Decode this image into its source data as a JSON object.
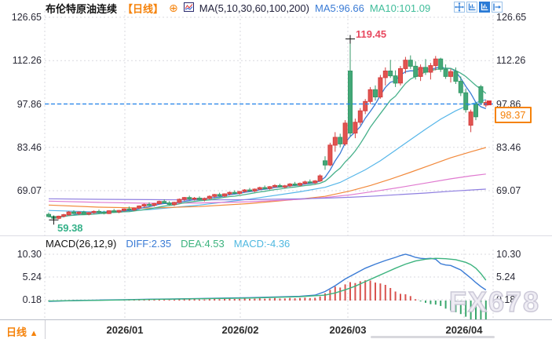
{
  "header": {
    "title": "布伦特原油连续",
    "period_tag": "【日线】",
    "plus_icon": "⊕",
    "ma_settings": "MA(5,10,30,60,100,200)",
    "ma5": "MA5:96.66",
    "ma10": "MA10:101.09"
  },
  "macd_header": {
    "label": "MACD(26,12,9)",
    "diff": "DIFF:2.35",
    "dea": "DEA:4.53",
    "macd": "MACD:-4.36"
  },
  "annotations": {
    "high": "119.45",
    "low": "59.38",
    "last_price": "98.37"
  },
  "bottom_bar": {
    "period": "日线",
    "arrow": "▲",
    "dates": [
      "2026/01",
      "2026/02",
      "2026/03",
      "2026/04"
    ]
  },
  "watermark": "FX678",
  "colors": {
    "up": "#e15450",
    "up_stroke": "#d64040",
    "down": "#43a878",
    "down_stroke": "#379a69",
    "ma5": "#3a7bd5",
    "ma10": "#46b08a",
    "ma30": "#56b6e9",
    "ma60": "#f2893b",
    "ma100": "#e07ad0",
    "ma200": "#8f7fe0",
    "diff": "#3a7bd5",
    "dea": "#3cb37e",
    "hist_pos": "#d9534f",
    "hist_neg": "#3aa76d",
    "dashed_line": "#1e7fe8",
    "accent_orange": "#f5820a",
    "grid": "#d9d9df",
    "marker": "#e03434",
    "cross": "#111111"
  },
  "chart_data": {
    "type": "candlestick",
    "instrument": "布伦特原油连续",
    "interval": "日线",
    "price_axis_ticks": [
      126.65,
      112.26,
      97.86,
      83.46,
      69.07
    ],
    "dashed_level": 97.86,
    "last_price": 98.37,
    "high_annotation": {
      "index": 60,
      "price": 119.45
    },
    "low_annotation": {
      "index": 1,
      "price": 59.38
    },
    "candles": [
      [
        61.2,
        61.8,
        60.2,
        60.5
      ],
      [
        60.5,
        60.9,
        59.38,
        59.9
      ],
      [
        59.9,
        60.8,
        59.6,
        60.6
      ],
      [
        60.6,
        61.4,
        60.2,
        61.1
      ],
      [
        61.1,
        62.3,
        60.8,
        62.0
      ],
      [
        62.0,
        62.6,
        61.2,
        61.5
      ],
      [
        61.5,
        62.2,
        61.0,
        62.0
      ],
      [
        62.0,
        62.4,
        61.1,
        61.3
      ],
      [
        61.3,
        62.0,
        60.9,
        61.8
      ],
      [
        61.8,
        62.5,
        61.4,
        62.2
      ],
      [
        62.2,
        62.8,
        61.6,
        61.9
      ],
      [
        61.9,
        62.4,
        61.2,
        61.5
      ],
      [
        61.5,
        62.6,
        61.3,
        62.4
      ],
      [
        62.4,
        63.0,
        61.8,
        62.0
      ],
      [
        62.0,
        62.7,
        61.6,
        62.5
      ],
      [
        62.5,
        63.2,
        62.1,
        63.0
      ],
      [
        63.0,
        63.8,
        62.4,
        62.7
      ],
      [
        62.7,
        63.5,
        62.3,
        63.3
      ],
      [
        63.3,
        64.2,
        63.0,
        64.0
      ],
      [
        64.0,
        64.8,
        63.5,
        64.5
      ],
      [
        64.5,
        65.2,
        63.9,
        64.2
      ],
      [
        64.2,
        65.0,
        63.8,
        64.8
      ],
      [
        64.8,
        65.8,
        64.5,
        65.5
      ],
      [
        65.5,
        66.2,
        64.8,
        65.0
      ],
      [
        65.0,
        65.6,
        64.2,
        64.5
      ],
      [
        64.5,
        65.4,
        64.0,
        65.2
      ],
      [
        65.2,
        66.5,
        65.0,
        66.2
      ],
      [
        66.2,
        67.0,
        65.6,
        66.8
      ],
      [
        66.8,
        67.4,
        66.0,
        66.3
      ],
      [
        66.3,
        67.0,
        65.8,
        66.6
      ],
      [
        66.6,
        67.2,
        65.9,
        66.1
      ],
      [
        66.1,
        66.8,
        65.5,
        66.5
      ],
      [
        66.5,
        67.5,
        66.2,
        67.2
      ],
      [
        67.2,
        68.0,
        66.6,
        67.8
      ],
      [
        67.8,
        68.4,
        67.0,
        67.3
      ],
      [
        67.3,
        68.2,
        67.0,
        68.0
      ],
      [
        68.0,
        68.8,
        67.5,
        68.5
      ],
      [
        68.5,
        69.2,
        67.9,
        68.2
      ],
      [
        68.2,
        69.0,
        67.8,
        68.8
      ],
      [
        68.8,
        69.6,
        68.4,
        69.3
      ],
      [
        69.3,
        70.0,
        68.7,
        69.0
      ],
      [
        69.0,
        69.8,
        68.6,
        69.6
      ],
      [
        69.6,
        70.4,
        69.2,
        70.1
      ],
      [
        70.1,
        70.8,
        69.5,
        69.8
      ],
      [
        69.8,
        70.6,
        69.4,
        70.4
      ],
      [
        70.4,
        71.2,
        70.0,
        70.8
      ],
      [
        70.8,
        71.4,
        70.1,
        70.3
      ],
      [
        70.3,
        71.0,
        69.8,
        70.7
      ],
      [
        70.7,
        71.6,
        70.3,
        71.3
      ],
      [
        71.3,
        72.0,
        70.6,
        70.9
      ],
      [
        70.9,
        71.8,
        70.5,
        71.5
      ],
      [
        71.5,
        72.4,
        71.1,
        72.0
      ],
      [
        72.0,
        72.8,
        71.4,
        71.7
      ],
      [
        71.7,
        72.6,
        71.3,
        72.3
      ],
      [
        72.3,
        74.5,
        72.0,
        74.0
      ],
      [
        79.0,
        80.5,
        76.0,
        77.6
      ],
      [
        77.6,
        85.0,
        77.2,
        84.2
      ],
      [
        84.2,
        88.5,
        82.0,
        86.8
      ],
      [
        86.8,
        88.0,
        83.5,
        84.6
      ],
      [
        84.6,
        92.5,
        84.0,
        91.5
      ],
      [
        108.8,
        119.45,
        87.0,
        88.2
      ],
      [
        88.2,
        93.0,
        86.5,
        91.8
      ],
      [
        91.8,
        96.5,
        90.8,
        95.6
      ],
      [
        95.6,
        99.5,
        94.5,
        98.7
      ],
      [
        98.7,
        103.5,
        97.8,
        102.6
      ],
      [
        102.6,
        104.0,
        99.0,
        100.2
      ],
      [
        100.2,
        107.5,
        99.6,
        106.6
      ],
      [
        106.6,
        110.0,
        104.0,
        108.8
      ],
      [
        108.8,
        112.5,
        106.5,
        107.2
      ],
      [
        107.2,
        109.0,
        103.5,
        104.8
      ],
      [
        104.8,
        110.5,
        104.0,
        109.6
      ],
      [
        109.6,
        113.5,
        108.0,
        112.4
      ],
      [
        112.4,
        114.0,
        109.5,
        110.4
      ],
      [
        110.4,
        112.0,
        106.0,
        107.0
      ],
      [
        107.0,
        111.0,
        105.5,
        110.0
      ],
      [
        110.0,
        112.8,
        107.5,
        108.4
      ],
      [
        108.4,
        111.5,
        106.0,
        110.6
      ],
      [
        110.6,
        113.8,
        109.0,
        112.8
      ],
      [
        112.8,
        113.2,
        108.5,
        109.4
      ],
      [
        109.4,
        111.0,
        106.2,
        107.0
      ],
      [
        107.0,
        109.5,
        105.0,
        108.6
      ],
      [
        108.6,
        110.0,
        104.5,
        105.4
      ],
      [
        105.4,
        107.0,
        100.5,
        101.6
      ],
      [
        101.6,
        103.0,
        95.0,
        96.0
      ],
      [
        90.8,
        96.0,
        88.5,
        95.2
      ],
      [
        97.8,
        98.5,
        92.5,
        93.6
      ],
      [
        103.6,
        104.2,
        97.5,
        98.3
      ],
      [
        97.5,
        99.2,
        96.8,
        98.37
      ]
    ],
    "computed_ma": [
      {
        "name": "MA5",
        "period": 5,
        "color_key": "ma5"
      },
      {
        "name": "MA10",
        "period": 10,
        "color_key": "ma10"
      }
    ],
    "long_ma": [
      {
        "name": "MA30",
        "color_key": "ma30",
        "points": [
          [
            0,
            62.5
          ],
          [
            10,
            62.0
          ],
          [
            20,
            62.8
          ],
          [
            30,
            64.3
          ],
          [
            40,
            66.3
          ],
          [
            50,
            68.7
          ],
          [
            55,
            70.2
          ],
          [
            58,
            71.8
          ],
          [
            60,
            73.5
          ],
          [
            63,
            76.0
          ],
          [
            66,
            79.0
          ],
          [
            69,
            82.5
          ],
          [
            72,
            86.0
          ],
          [
            75,
            89.5
          ],
          [
            78,
            92.8
          ],
          [
            81,
            95.6
          ],
          [
            84,
            97.8
          ],
          [
            87,
            99.3
          ]
        ]
      },
      {
        "name": "MA60",
        "color_key": "ma60",
        "points": [
          [
            0,
            64.3
          ],
          [
            10,
            63.6
          ],
          [
            20,
            63.3
          ],
          [
            30,
            63.8
          ],
          [
            40,
            64.8
          ],
          [
            50,
            66.3
          ],
          [
            55,
            67.2
          ],
          [
            60,
            69.0
          ],
          [
            64,
            70.8
          ],
          [
            68,
            72.9
          ],
          [
            72,
            75.2
          ],
          [
            76,
            77.6
          ],
          [
            80,
            80.0
          ],
          [
            84,
            82.0
          ],
          [
            87,
            83.4
          ]
        ]
      },
      {
        "name": "MA100",
        "color_key": "ma100",
        "points": [
          [
            0,
            65.6
          ],
          [
            10,
            65.2
          ],
          [
            20,
            64.9
          ],
          [
            30,
            65.0
          ],
          [
            40,
            65.4
          ],
          [
            50,
            66.2
          ],
          [
            55,
            66.8
          ],
          [
            60,
            67.7
          ],
          [
            65,
            68.9
          ],
          [
            70,
            70.2
          ],
          [
            75,
            71.6
          ],
          [
            80,
            73.0
          ],
          [
            84,
            74.0
          ],
          [
            87,
            74.6
          ]
        ]
      },
      {
        "name": "MA200",
        "color_key": "ma200",
        "points": [
          [
            0,
            66.4
          ],
          [
            10,
            66.2
          ],
          [
            20,
            66.1
          ],
          [
            30,
            66.0
          ],
          [
            40,
            66.1
          ],
          [
            50,
            66.4
          ],
          [
            55,
            66.6
          ],
          [
            60,
            66.9
          ],
          [
            65,
            67.3
          ],
          [
            70,
            67.8
          ],
          [
            75,
            68.3
          ],
          [
            80,
            68.9
          ],
          [
            84,
            69.3
          ],
          [
            87,
            69.6
          ]
        ]
      }
    ],
    "macd": {
      "params": "26,12,9",
      "diff_value": 2.35,
      "dea_value": 4.53,
      "macd_value": -4.36,
      "axis_ticks": [
        "10.30",
        "5.24",
        "0.18"
      ],
      "hist": [
        -0.15,
        -0.22,
        -0.18,
        -0.05,
        0.1,
        0.12,
        0.1,
        0.08,
        0.1,
        0.14,
        0.12,
        0.08,
        0.12,
        0.1,
        0.14,
        0.18,
        0.15,
        0.18,
        0.25,
        0.3,
        0.22,
        0.25,
        0.32,
        0.25,
        0.15,
        0.18,
        0.3,
        0.38,
        0.3,
        0.28,
        0.22,
        0.25,
        0.33,
        0.4,
        0.32,
        0.35,
        0.42,
        0.35,
        0.38,
        0.45,
        0.38,
        0.42,
        0.5,
        0.42,
        0.48,
        0.55,
        0.45,
        0.48,
        0.58,
        0.5,
        0.55,
        0.65,
        0.55,
        0.62,
        0.9,
        1.6,
        2.4,
        3.1,
        2.9,
        3.6,
        4.1,
        3.9,
        4.3,
        4.5,
        4.45,
        4.0,
        3.8,
        3.5,
        2.8,
        2.0,
        1.5,
        1.4,
        1.0,
        0.3,
        -0.2,
        -0.5,
        -0.8,
        -0.9,
        -1.2,
        -1.8,
        -2.2,
        -2.6,
        -3.0,
        -3.6,
        -4.2,
        -4.6,
        -4.9,
        -4.36
      ],
      "diff_points": [
        [
          0,
          -0.2
        ],
        [
          5,
          0.0
        ],
        [
          10,
          0.1
        ],
        [
          15,
          0.2
        ],
        [
          20,
          0.3
        ],
        [
          25,
          0.35
        ],
        [
          30,
          0.45
        ],
        [
          35,
          0.55
        ],
        [
          40,
          0.65
        ],
        [
          45,
          0.8
        ],
        [
          50,
          0.95
        ],
        [
          53,
          1.2
        ],
        [
          55,
          2.0
        ],
        [
          57,
          3.3
        ],
        [
          59,
          4.8
        ],
        [
          61,
          6.0
        ],
        [
          63,
          7.2
        ],
        [
          65,
          8.1
        ],
        [
          67,
          8.9
        ],
        [
          69,
          9.6
        ],
        [
          70,
          10.0
        ],
        [
          71,
          10.3
        ],
        [
          72,
          10.0
        ],
        [
          73,
          9.6
        ],
        [
          74,
          9.4
        ],
        [
          75,
          9.3
        ],
        [
          76,
          9.4
        ],
        [
          77,
          9.2
        ],
        [
          78,
          8.2
        ],
        [
          79,
          7.9
        ],
        [
          80,
          7.8
        ],
        [
          81,
          7.3
        ],
        [
          82,
          6.8
        ],
        [
          83,
          5.9
        ],
        [
          84,
          5.0
        ],
        [
          85,
          4.0
        ],
        [
          86,
          3.1
        ],
        [
          87,
          2.35
        ]
      ],
      "dea_points": [
        [
          0,
          -0.1
        ],
        [
          10,
          0.05
        ],
        [
          20,
          0.25
        ],
        [
          30,
          0.4
        ],
        [
          40,
          0.55
        ],
        [
          50,
          0.85
        ],
        [
          55,
          1.2
        ],
        [
          57,
          1.7
        ],
        [
          59,
          2.4
        ],
        [
          61,
          3.2
        ],
        [
          63,
          4.2
        ],
        [
          65,
          5.2
        ],
        [
          67,
          6.2
        ],
        [
          69,
          7.2
        ],
        [
          71,
          8.1
        ],
        [
          73,
          8.8
        ],
        [
          75,
          9.2
        ],
        [
          77,
          9.4
        ],
        [
          79,
          9.3
        ],
        [
          81,
          9.1
        ],
        [
          83,
          8.5
        ],
        [
          84,
          8.0
        ],
        [
          85,
          7.2
        ],
        [
          86,
          6.0
        ],
        [
          87,
          4.53
        ]
      ]
    }
  }
}
